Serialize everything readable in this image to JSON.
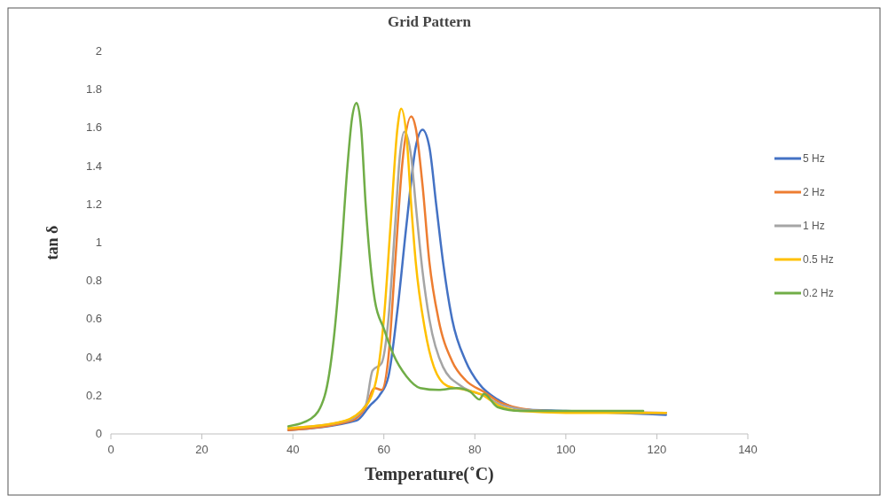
{
  "chart_data": {
    "type": "line",
    "title": "Grid Pattern",
    "xlabel": "Temperature(˚C)",
    "ylabel": "tan δ",
    "xlim": [
      0,
      140
    ],
    "xticks": [
      0,
      20,
      40,
      60,
      80,
      100,
      120,
      140
    ],
    "ylim": [
      0,
      2
    ],
    "yticks": [
      0,
      0.2,
      0.4,
      0.6,
      0.8,
      1,
      1.2,
      1.4,
      1.6,
      1.8,
      2
    ],
    "grid": false,
    "legend": "right",
    "line_style": "solid",
    "series": [
      {
        "name": "5 Hz",
        "color": "#4472c4",
        "x": [
          39,
          54,
          57,
          59,
          61,
          63,
          65,
          67,
          68.5,
          70,
          71.5,
          73,
          75,
          78,
          81,
          85,
          90,
          100,
          122
        ],
        "values": [
          0.02,
          0.07,
          0.15,
          0.2,
          0.3,
          0.65,
          1.1,
          1.5,
          1.59,
          1.5,
          1.2,
          0.9,
          0.6,
          0.38,
          0.26,
          0.18,
          0.13,
          0.12,
          0.1
        ]
      },
      {
        "name": "2 Hz",
        "color": "#ed7d31",
        "x": [
          39,
          53,
          56,
          58,
          59.5,
          61,
          62.5,
          64,
          66,
          67,
          68.5,
          70,
          72,
          75,
          78,
          82,
          86,
          95,
          122
        ],
        "values": [
          0.02,
          0.07,
          0.14,
          0.24,
          0.23,
          0.4,
          0.9,
          1.4,
          1.66,
          1.6,
          1.3,
          0.9,
          0.6,
          0.38,
          0.28,
          0.22,
          0.16,
          0.12,
          0.11
        ]
      },
      {
        "name": "1 Hz",
        "color": "#a5a5a5",
        "x": [
          39,
          52,
          56,
          57.5,
          59.5,
          61,
          62.5,
          63.5,
          64.5,
          66,
          67,
          68.5,
          70,
          73,
          77,
          82,
          86,
          95,
          122
        ],
        "values": [
          0.03,
          0.07,
          0.15,
          0.33,
          0.37,
          0.6,
          1.1,
          1.45,
          1.58,
          1.45,
          1.2,
          0.85,
          0.6,
          0.35,
          0.25,
          0.2,
          0.15,
          0.12,
          0.11
        ]
      },
      {
        "name": "0.5 Hz",
        "color": "#ffc000",
        "x": [
          39,
          50,
          55,
          58,
          60,
          61.5,
          63,
          63.8,
          65,
          66,
          67,
          69,
          71,
          74,
          78,
          82,
          85,
          90,
          100,
          122
        ],
        "values": [
          0.03,
          0.06,
          0.12,
          0.25,
          0.6,
          1.1,
          1.6,
          1.7,
          1.55,
          1.2,
          0.9,
          0.55,
          0.35,
          0.25,
          0.23,
          0.2,
          0.15,
          0.12,
          0.11,
          0.11
        ]
      },
      {
        "name": "0.2 Hz",
        "color": "#70ad47",
        "x": [
          39,
          44,
          47,
          49,
          50.5,
          52,
          53,
          54,
          55,
          56,
          57,
          58,
          60,
          62,
          65,
          68,
          72,
          76,
          79,
          81,
          82,
          85,
          90,
          100,
          117
        ],
        "values": [
          0.04,
          0.08,
          0.2,
          0.5,
          0.9,
          1.4,
          1.65,
          1.73,
          1.6,
          1.2,
          0.9,
          0.7,
          0.55,
          0.42,
          0.3,
          0.24,
          0.23,
          0.24,
          0.22,
          0.18,
          0.21,
          0.14,
          0.12,
          0.12,
          0.12
        ]
      }
    ]
  }
}
